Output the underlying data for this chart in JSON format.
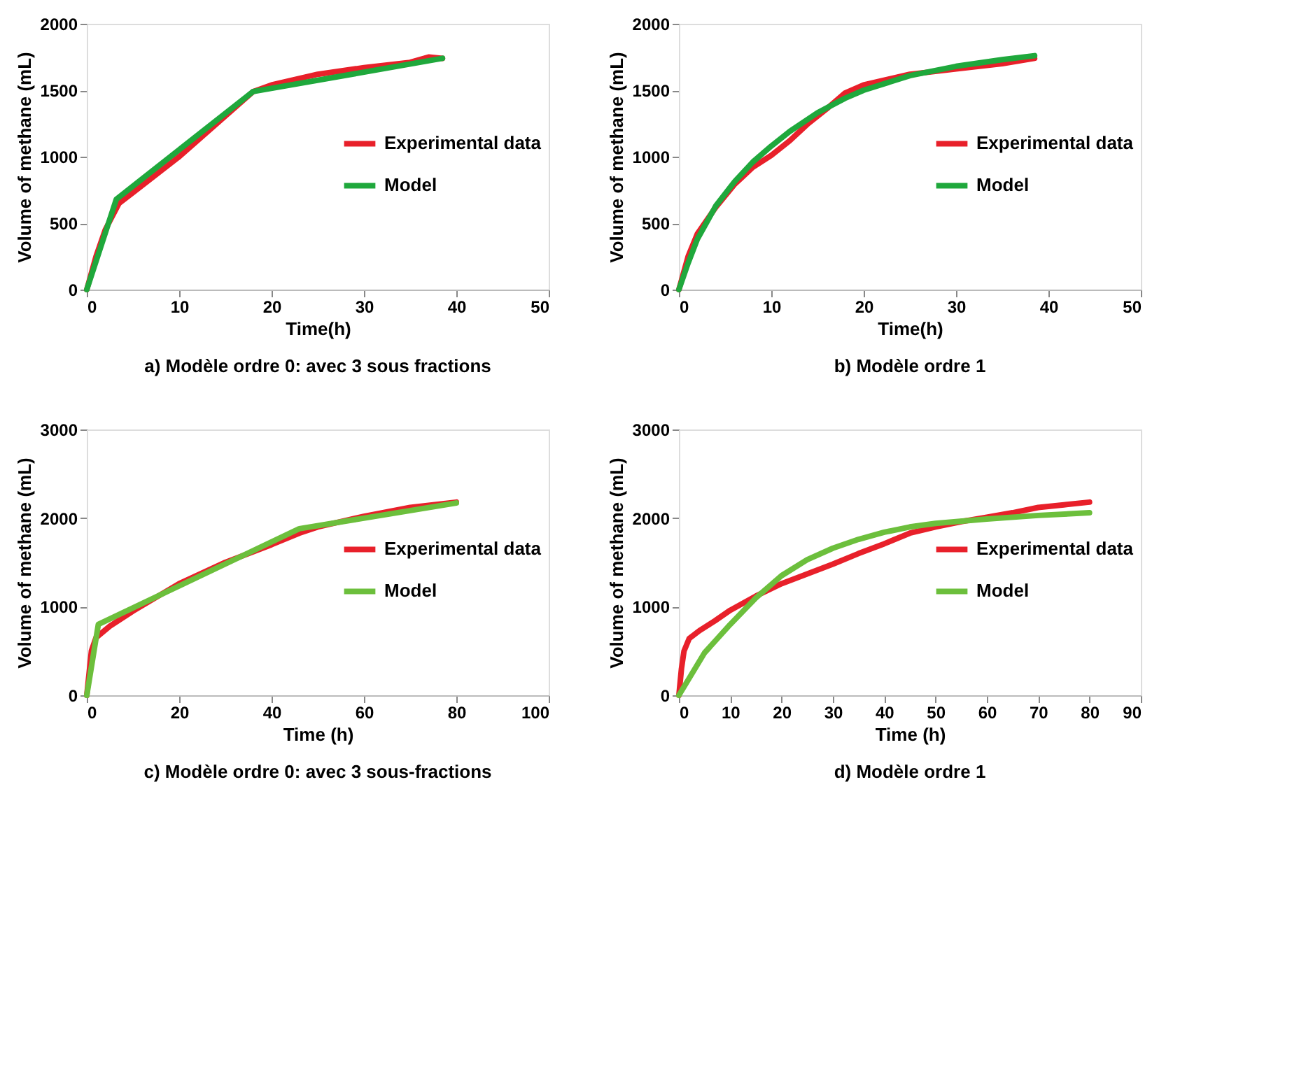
{
  "chart_data": [
    {
      "type": "line",
      "xlabel": "Time(h)",
      "ylabel": "Volume of  methane (mL)",
      "xlim": [
        0,
        50
      ],
      "xticks": [
        0,
        10,
        20,
        30,
        40,
        50
      ],
      "ylim": [
        0,
        2000
      ],
      "yticks": [
        0,
        500,
        1000,
        1500,
        2000
      ],
      "grid": false,
      "legend": "right",
      "marker": "none",
      "line_style": "solid",
      "annotations": [
        "a) Modèle ordre 0: avec 3 sous fractions"
      ],
      "series": [
        {
          "name": "Experimental data",
          "color": "#e8202a",
          "x": [
            0,
            1,
            2,
            3.5,
            5,
            10,
            18,
            20,
            25,
            30,
            35,
            37,
            38.5
          ],
          "values": [
            0,
            250,
            450,
            650,
            730,
            1000,
            1490,
            1540,
            1620,
            1670,
            1710,
            1750,
            1740
          ]
        },
        {
          "name": "Model",
          "color": "#1fa83c",
          "x": [
            0,
            3.2,
            18,
            38.5
          ],
          "values": [
            0,
            680,
            1490,
            1740
          ]
        }
      ]
    },
    {
      "type": "line",
      "xlabel": "Time(h)",
      "ylabel": "Volume of  methane (mL)",
      "xlim": [
        0,
        50
      ],
      "xticks": [
        0,
        10,
        20,
        30,
        40,
        50
      ],
      "ylim": [
        0,
        2000
      ],
      "yticks": [
        0,
        500,
        1000,
        1500,
        2000
      ],
      "grid": false,
      "legend": "right",
      "marker": "none",
      "line_style": "solid",
      "annotations": [
        "b) Modèle ordre 1"
      ],
      "series": [
        {
          "name": "Experimental data",
          "color": "#e8202a",
          "x": [
            0,
            1,
            2,
            4,
            6,
            8,
            10,
            12,
            14,
            16,
            18,
            20,
            25,
            30,
            35,
            38.5
          ],
          "values": [
            0,
            250,
            420,
            620,
            790,
            920,
            1010,
            1120,
            1250,
            1360,
            1480,
            1540,
            1620,
            1660,
            1700,
            1740
          ]
        },
        {
          "name": "Model",
          "color": "#1fa83c",
          "x": [
            0,
            1,
            2,
            4,
            6,
            8,
            10,
            12,
            15,
            18,
            20,
            25,
            30,
            35,
            38.5
          ],
          "values": [
            0,
            200,
            380,
            630,
            810,
            960,
            1080,
            1190,
            1330,
            1440,
            1500,
            1610,
            1680,
            1730,
            1760
          ]
        }
      ]
    },
    {
      "type": "line",
      "xlabel": "Time (h)",
      "ylabel": "Volume of methane (mL)",
      "xlim": [
        0,
        100
      ],
      "xticks": [
        0,
        20,
        40,
        60,
        80,
        100
      ],
      "ylim": [
        0,
        3000
      ],
      "yticks": [
        0,
        1000,
        2000,
        3000
      ],
      "grid": false,
      "legend": "right",
      "marker": "none",
      "line_style": "solid",
      "annotations": [
        "c)  Modèle ordre 0: avec 3 sous-fractions"
      ],
      "series": [
        {
          "name": "Experimental data",
          "color": "#e8202a",
          "x": [
            0,
            1,
            2,
            5,
            10,
            20,
            30,
            40,
            46,
            50,
            60,
            70,
            80
          ],
          "values": [
            0,
            500,
            650,
            780,
            950,
            1260,
            1500,
            1700,
            1830,
            1900,
            2020,
            2120,
            2180
          ]
        },
        {
          "name": "Model",
          "color": "#6cbf3c",
          "x": [
            0,
            2.5,
            46,
            80
          ],
          "values": [
            0,
            800,
            1880,
            2170
          ]
        }
      ]
    },
    {
      "type": "line",
      "xlabel": "Time (h)",
      "ylabel": "Volume of methane (mL)",
      "xlim": [
        0,
        90
      ],
      "xticks": [
        0,
        10,
        20,
        30,
        40,
        50,
        60,
        70,
        80,
        90
      ],
      "ylim": [
        0,
        3000
      ],
      "yticks": [
        0,
        1000,
        2000,
        3000
      ],
      "grid": false,
      "legend": "right",
      "marker": "none",
      "line_style": "solid",
      "annotations": [
        "d)     Modèle ordre 1"
      ],
      "series": [
        {
          "name": "Experimental data",
          "color": "#e8202a",
          "x": [
            0,
            0.5,
            1,
            2,
            4,
            7,
            10,
            15,
            20,
            25,
            30,
            35,
            40,
            45,
            50,
            55,
            60,
            65,
            70,
            75,
            80
          ],
          "values": [
            0,
            300,
            500,
            640,
            730,
            840,
            960,
            1120,
            1260,
            1370,
            1480,
            1600,
            1710,
            1830,
            1900,
            1960,
            2010,
            2060,
            2120,
            2150,
            2180
          ]
        },
        {
          "name": "Model",
          "color": "#6cbf3c",
          "x": [
            0,
            5,
            10,
            15,
            20,
            25,
            30,
            35,
            40,
            45,
            50,
            60,
            70,
            80
          ],
          "values": [
            0,
            480,
            800,
            1100,
            1350,
            1530,
            1660,
            1760,
            1840,
            1900,
            1940,
            1990,
            2030,
            2060
          ]
        }
      ]
    }
  ]
}
